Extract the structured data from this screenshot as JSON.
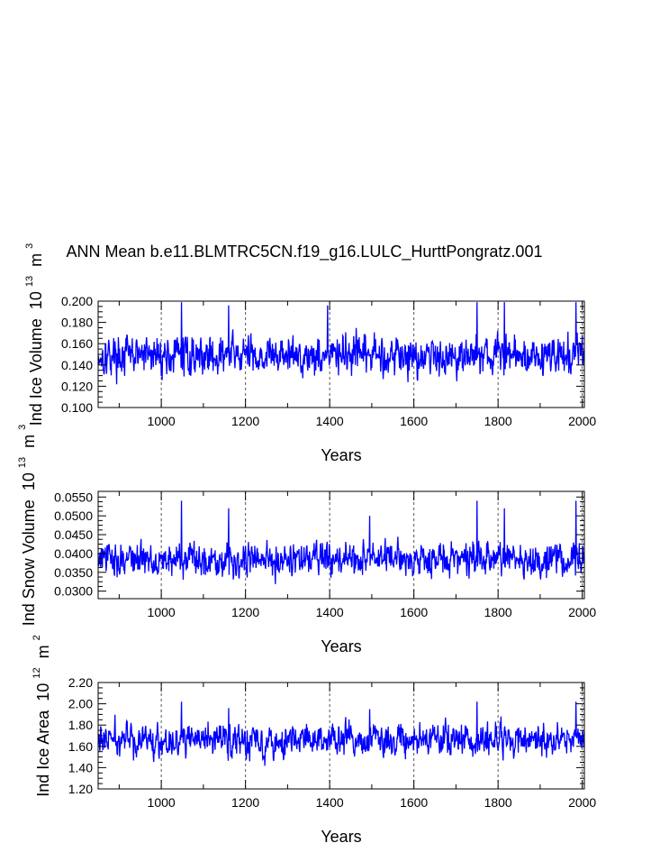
{
  "title": "ANN Mean b.e11.BLMTRC5CN.f19_g16.LULC_HurttPongratz.001",
  "line_color": "#0000ff",
  "grid_color": "#555555",
  "chart_data": [
    {
      "type": "line",
      "ylabel": "Ind Ice Volume",
      "ylabel_unit": "10",
      "ylabel_exp": "13",
      "ylabel_unit2": "m",
      "ylabel_exp2": "3",
      "xlabel": "Years",
      "xlim": [
        850,
        2005
      ],
      "ylim": [
        0.1,
        0.2
      ],
      "xticks": [
        "1000",
        "1200",
        "1400",
        "1600",
        "1800",
        "2000"
      ],
      "yticks": [
        "0.100",
        "0.120",
        "0.140",
        "0.160",
        "0.180",
        "0.200"
      ],
      "series": [
        {
          "x_start": 850,
          "x_end": 2005,
          "mean": 0.149,
          "amplitude": 0.013,
          "peaks_x": [
            1048,
            1160,
            1395,
            1750,
            1815,
            1985
          ],
          "peaks_y": [
            0.199,
            0.196,
            0.196,
            0.199,
            0.199,
            0.199
          ]
        }
      ]
    },
    {
      "type": "line",
      "ylabel": "Ind Snow Volume",
      "ylabel_unit": "10",
      "ylabel_exp": "13",
      "ylabel_unit2": "m",
      "ylabel_exp2": "3",
      "xlabel": "Years",
      "xlim": [
        850,
        2005
      ],
      "ylim": [
        0.028,
        0.0565
      ],
      "xticks": [
        "1000",
        "1200",
        "1400",
        "1600",
        "1800",
        "2000"
      ],
      "yticks": [
        "0.0300",
        "0.0350",
        "0.0400",
        "0.0450",
        "0.0500",
        "0.0550"
      ],
      "series": [
        {
          "x_start": 850,
          "x_end": 2005,
          "mean": 0.0385,
          "amplitude": 0.0032,
          "peaks_x": [
            1048,
            1160,
            1495,
            1750,
            1815,
            1985
          ],
          "peaks_y": [
            0.054,
            0.052,
            0.05,
            0.054,
            0.052,
            0.054
          ]
        }
      ]
    },
    {
      "type": "line",
      "ylabel": "Ind Ice Area",
      "ylabel_unit": "10",
      "ylabel_exp": "12",
      "ylabel_unit2": "m",
      "ylabel_exp2": "2",
      "xlabel": "Years",
      "xlim": [
        850,
        2005
      ],
      "ylim": [
        1.2,
        2.2
      ],
      "xticks": [
        "1000",
        "1200",
        "1400",
        "1600",
        "1800",
        "2000"
      ],
      "yticks": [
        "1.20",
        "1.40",
        "1.60",
        "1.80",
        "2.00",
        "2.20"
      ],
      "series": [
        {
          "x_start": 850,
          "x_end": 2005,
          "mean": 1.66,
          "amplitude": 0.11,
          "peaks_x": [
            1048,
            1160,
            1495,
            1750,
            1985
          ],
          "peaks_y": [
            2.02,
            1.96,
            1.95,
            2.02,
            2.02
          ]
        }
      ]
    }
  ]
}
